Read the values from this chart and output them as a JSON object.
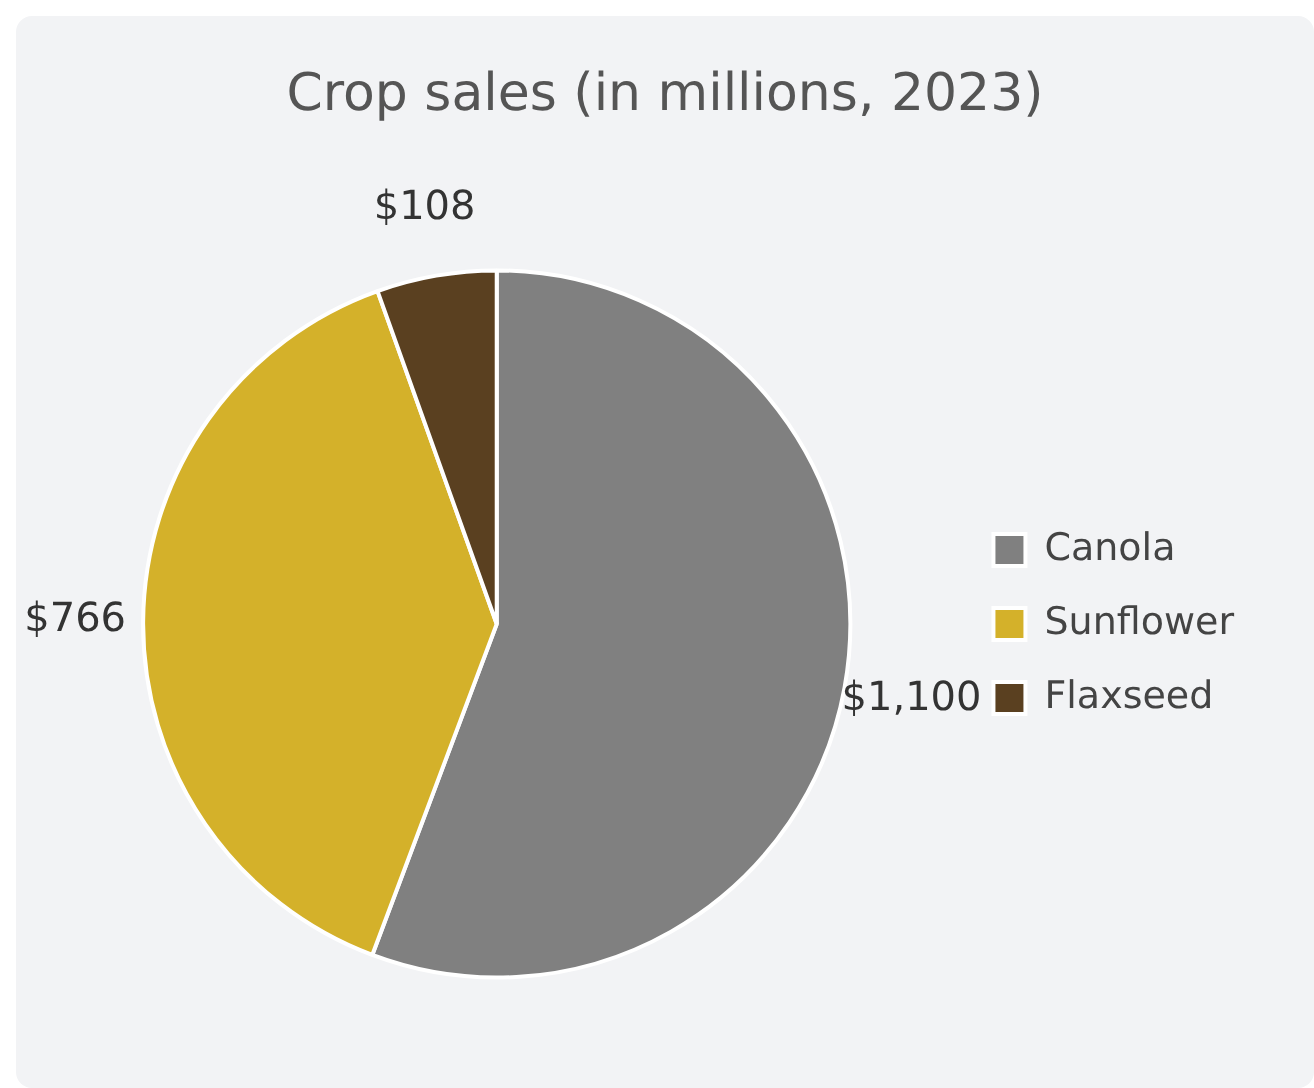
{
  "chart_data": {
    "type": "pie",
    "title": "Crop sales (in millions, 2023)",
    "categories": [
      "Canola",
      "Sunflower",
      "Flaxseed"
    ],
    "values": [
      1100,
      766,
      108
    ],
    "colors": [
      "#808080",
      "#d4b12a",
      "#5a4020"
    ],
    "value_labels": [
      "$1,100",
      "$766",
      "$108"
    ],
    "legend": "right"
  }
}
